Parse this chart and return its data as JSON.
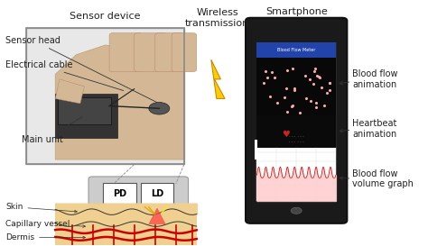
{
  "bg_color": "#ffffff",
  "title_sensor": "Sensor device",
  "title_wireless": "Wireless\ntransmission",
  "title_smartphone": "Smartphone",
  "label_sensor_head": "Sensor head",
  "label_electrical": "Electrical cable",
  "label_main_unit": "Main unit",
  "label_pd": "PD",
  "label_ld": "LD",
  "label_skin": "Skin",
  "label_capillary": "Capillary vessel",
  "label_dermis": "Dermis",
  "label_blood_flow": "Blood flow\nanimation",
  "label_heartbeat": "Heartbeat\nanimation",
  "label_blood_vol": "Blood flow\nvolume graph",
  "sensor_box_bg": "#c8c8c8",
  "skin_color": "#f0d090",
  "blood_red": "#cc0000",
  "font_size_label": 7,
  "font_size_title": 8,
  "arrow_color": "#333333"
}
